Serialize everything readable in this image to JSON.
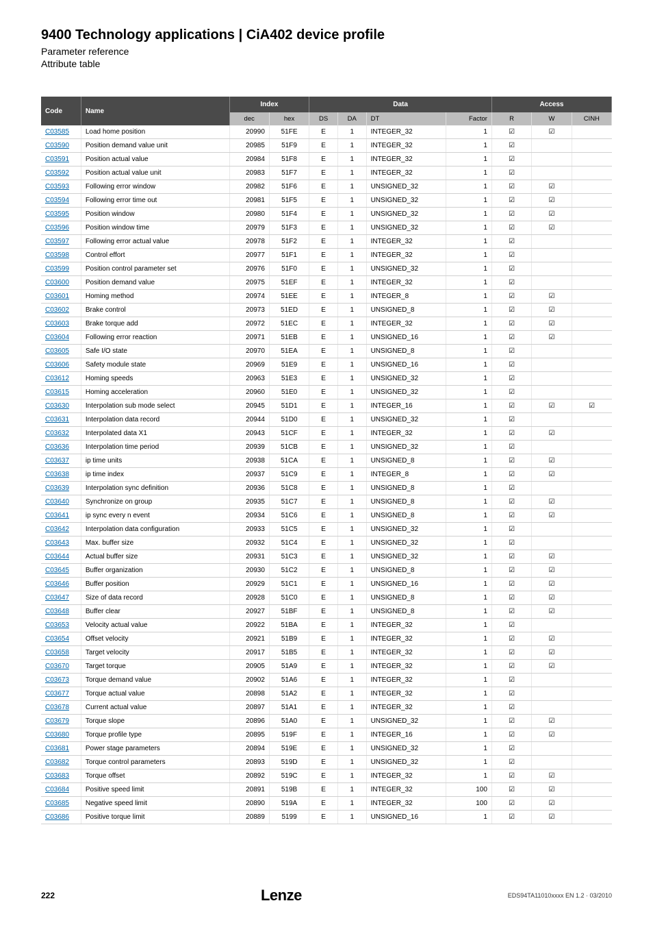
{
  "header": {
    "title": "9400 Technology applications | CiA402 device profile",
    "subtitle": "Parameter reference",
    "attribute_table": "Attribute table"
  },
  "table": {
    "group_headers": {
      "code": "Code",
      "name": "Name",
      "index": "Index",
      "data": "Data",
      "access": "Access"
    },
    "sub_headers": {
      "dec": "dec",
      "hex": "hex",
      "ds": "DS",
      "da": "DA",
      "dt": "DT",
      "factor": "Factor",
      "r": "R",
      "w": "W",
      "cinh": "CINH"
    }
  },
  "checkbox_glyph": "☑",
  "rows": [
    {
      "code": "C03585",
      "name": "Load home position",
      "dec": "20990",
      "hex": "51FE",
      "ds": "E",
      "da": "1",
      "dt": "INTEGER_32",
      "factor": "1",
      "r": true,
      "w": true,
      "cinh": false
    },
    {
      "code": "C03590",
      "name": "Position demand value unit",
      "dec": "20985",
      "hex": "51F9",
      "ds": "E",
      "da": "1",
      "dt": "INTEGER_32",
      "factor": "1",
      "r": true,
      "w": false,
      "cinh": false
    },
    {
      "code": "C03591",
      "name": "Position actual value",
      "dec": "20984",
      "hex": "51F8",
      "ds": "E",
      "da": "1",
      "dt": "INTEGER_32",
      "factor": "1",
      "r": true,
      "w": false,
      "cinh": false
    },
    {
      "code": "C03592",
      "name": "Position actual value unit",
      "dec": "20983",
      "hex": "51F7",
      "ds": "E",
      "da": "1",
      "dt": "INTEGER_32",
      "factor": "1",
      "r": true,
      "w": false,
      "cinh": false
    },
    {
      "code": "C03593",
      "name": "Following error window",
      "dec": "20982",
      "hex": "51F6",
      "ds": "E",
      "da": "1",
      "dt": "UNSIGNED_32",
      "factor": "1",
      "r": true,
      "w": true,
      "cinh": false
    },
    {
      "code": "C03594",
      "name": "Following error time out",
      "dec": "20981",
      "hex": "51F5",
      "ds": "E",
      "da": "1",
      "dt": "UNSIGNED_32",
      "factor": "1",
      "r": true,
      "w": true,
      "cinh": false
    },
    {
      "code": "C03595",
      "name": "Position window",
      "dec": "20980",
      "hex": "51F4",
      "ds": "E",
      "da": "1",
      "dt": "UNSIGNED_32",
      "factor": "1",
      "r": true,
      "w": true,
      "cinh": false
    },
    {
      "code": "C03596",
      "name": "Position window time",
      "dec": "20979",
      "hex": "51F3",
      "ds": "E",
      "da": "1",
      "dt": "UNSIGNED_32",
      "factor": "1",
      "r": true,
      "w": true,
      "cinh": false
    },
    {
      "code": "C03597",
      "name": "Following error actual value",
      "dec": "20978",
      "hex": "51F2",
      "ds": "E",
      "da": "1",
      "dt": "INTEGER_32",
      "factor": "1",
      "r": true,
      "w": false,
      "cinh": false
    },
    {
      "code": "C03598",
      "name": "Control effort",
      "dec": "20977",
      "hex": "51F1",
      "ds": "E",
      "da": "1",
      "dt": "INTEGER_32",
      "factor": "1",
      "r": true,
      "w": false,
      "cinh": false
    },
    {
      "code": "C03599",
      "name": "Position control parameter set",
      "dec": "20976",
      "hex": "51F0",
      "ds": "E",
      "da": "1",
      "dt": "UNSIGNED_32",
      "factor": "1",
      "r": true,
      "w": false,
      "cinh": false
    },
    {
      "code": "C03600",
      "name": "Position demand value",
      "dec": "20975",
      "hex": "51EF",
      "ds": "E",
      "da": "1",
      "dt": "INTEGER_32",
      "factor": "1",
      "r": true,
      "w": false,
      "cinh": false
    },
    {
      "code": "C03601",
      "name": "Homing method",
      "dec": "20974",
      "hex": "51EE",
      "ds": "E",
      "da": "1",
      "dt": "INTEGER_8",
      "factor": "1",
      "r": true,
      "w": true,
      "cinh": false
    },
    {
      "code": "C03602",
      "name": "Brake control",
      "dec": "20973",
      "hex": "51ED",
      "ds": "E",
      "da": "1",
      "dt": "UNSIGNED_8",
      "factor": "1",
      "r": true,
      "w": true,
      "cinh": false
    },
    {
      "code": "C03603",
      "name": "Brake torque add",
      "dec": "20972",
      "hex": "51EC",
      "ds": "E",
      "da": "1",
      "dt": "INTEGER_32",
      "factor": "1",
      "r": true,
      "w": true,
      "cinh": false
    },
    {
      "code": "C03604",
      "name": "Following error reaction",
      "dec": "20971",
      "hex": "51EB",
      "ds": "E",
      "da": "1",
      "dt": "UNSIGNED_16",
      "factor": "1",
      "r": true,
      "w": true,
      "cinh": false
    },
    {
      "code": "C03605",
      "name": "Safe I/O state",
      "dec": "20970",
      "hex": "51EA",
      "ds": "E",
      "da": "1",
      "dt": "UNSIGNED_8",
      "factor": "1",
      "r": true,
      "w": false,
      "cinh": false
    },
    {
      "code": "C03606",
      "name": "Safety module state",
      "dec": "20969",
      "hex": "51E9",
      "ds": "E",
      "da": "1",
      "dt": "UNSIGNED_16",
      "factor": "1",
      "r": true,
      "w": false,
      "cinh": false
    },
    {
      "code": "C03612",
      "name": "Homing speeds",
      "dec": "20963",
      "hex": "51E3",
      "ds": "E",
      "da": "1",
      "dt": "UNSIGNED_32",
      "factor": "1",
      "r": true,
      "w": false,
      "cinh": false
    },
    {
      "code": "C03615",
      "name": "Homing acceleration",
      "dec": "20960",
      "hex": "51E0",
      "ds": "E",
      "da": "1",
      "dt": "UNSIGNED_32",
      "factor": "1",
      "r": true,
      "w": false,
      "cinh": false
    },
    {
      "code": "C03630",
      "name": "Interpolation sub mode select",
      "dec": "20945",
      "hex": "51D1",
      "ds": "E",
      "da": "1",
      "dt": "INTEGER_16",
      "factor": "1",
      "r": true,
      "w": true,
      "cinh": true
    },
    {
      "code": "C03631",
      "name": "Interpolation data record",
      "dec": "20944",
      "hex": "51D0",
      "ds": "E",
      "da": "1",
      "dt": "UNSIGNED_32",
      "factor": "1",
      "r": true,
      "w": false,
      "cinh": false
    },
    {
      "code": "C03632",
      "name": "Interpolated data X1",
      "dec": "20943",
      "hex": "51CF",
      "ds": "E",
      "da": "1",
      "dt": "INTEGER_32",
      "factor": "1",
      "r": true,
      "w": true,
      "cinh": false
    },
    {
      "code": "C03636",
      "name": "Interpolation time period",
      "dec": "20939",
      "hex": "51CB",
      "ds": "E",
      "da": "1",
      "dt": "UNSIGNED_32",
      "factor": "1",
      "r": true,
      "w": false,
      "cinh": false
    },
    {
      "code": "C03637",
      "name": "ip time units",
      "dec": "20938",
      "hex": "51CA",
      "ds": "E",
      "da": "1",
      "dt": "UNSIGNED_8",
      "factor": "1",
      "r": true,
      "w": true,
      "cinh": false
    },
    {
      "code": "C03638",
      "name": "ip time index",
      "dec": "20937",
      "hex": "51C9",
      "ds": "E",
      "da": "1",
      "dt": "INTEGER_8",
      "factor": "1",
      "r": true,
      "w": true,
      "cinh": false
    },
    {
      "code": "C03639",
      "name": "Interpolation sync definition",
      "dec": "20936",
      "hex": "51C8",
      "ds": "E",
      "da": "1",
      "dt": "UNSIGNED_8",
      "factor": "1",
      "r": true,
      "w": false,
      "cinh": false
    },
    {
      "code": "C03640",
      "name": "Synchronize on group",
      "dec": "20935",
      "hex": "51C7",
      "ds": "E",
      "da": "1",
      "dt": "UNSIGNED_8",
      "factor": "1",
      "r": true,
      "w": true,
      "cinh": false
    },
    {
      "code": "C03641",
      "name": "ip sync every n event",
      "dec": "20934",
      "hex": "51C6",
      "ds": "E",
      "da": "1",
      "dt": "UNSIGNED_8",
      "factor": "1",
      "r": true,
      "w": true,
      "cinh": false
    },
    {
      "code": "C03642",
      "name": "Interpolation data configuration",
      "dec": "20933",
      "hex": "51C5",
      "ds": "E",
      "da": "1",
      "dt": "UNSIGNED_32",
      "factor": "1",
      "r": true,
      "w": false,
      "cinh": false
    },
    {
      "code": "C03643",
      "name": "Max. buffer size",
      "dec": "20932",
      "hex": "51C4",
      "ds": "E",
      "da": "1",
      "dt": "UNSIGNED_32",
      "factor": "1",
      "r": true,
      "w": false,
      "cinh": false
    },
    {
      "code": "C03644",
      "name": "Actual buffer size",
      "dec": "20931",
      "hex": "51C3",
      "ds": "E",
      "da": "1",
      "dt": "UNSIGNED_32",
      "factor": "1",
      "r": true,
      "w": true,
      "cinh": false
    },
    {
      "code": "C03645",
      "name": "Buffer organization",
      "dec": "20930",
      "hex": "51C2",
      "ds": "E",
      "da": "1",
      "dt": "UNSIGNED_8",
      "factor": "1",
      "r": true,
      "w": true,
      "cinh": false
    },
    {
      "code": "C03646",
      "name": "Buffer position",
      "dec": "20929",
      "hex": "51C1",
      "ds": "E",
      "da": "1",
      "dt": "UNSIGNED_16",
      "factor": "1",
      "r": true,
      "w": true,
      "cinh": false
    },
    {
      "code": "C03647",
      "name": "Size of data record",
      "dec": "20928",
      "hex": "51C0",
      "ds": "E",
      "da": "1",
      "dt": "UNSIGNED_8",
      "factor": "1",
      "r": true,
      "w": true,
      "cinh": false
    },
    {
      "code": "C03648",
      "name": "Buffer clear",
      "dec": "20927",
      "hex": "51BF",
      "ds": "E",
      "da": "1",
      "dt": "UNSIGNED_8",
      "factor": "1",
      "r": true,
      "w": true,
      "cinh": false
    },
    {
      "code": "C03653",
      "name": "Velocity actual value",
      "dec": "20922",
      "hex": "51BA",
      "ds": "E",
      "da": "1",
      "dt": "INTEGER_32",
      "factor": "1",
      "r": true,
      "w": false,
      "cinh": false
    },
    {
      "code": "C03654",
      "name": "Offset velocity",
      "dec": "20921",
      "hex": "51B9",
      "ds": "E",
      "da": "1",
      "dt": "INTEGER_32",
      "factor": "1",
      "r": true,
      "w": true,
      "cinh": false
    },
    {
      "code": "C03658",
      "name": "Target velocity",
      "dec": "20917",
      "hex": "51B5",
      "ds": "E",
      "da": "1",
      "dt": "INTEGER_32",
      "factor": "1",
      "r": true,
      "w": true,
      "cinh": false
    },
    {
      "code": "C03670",
      "name": "Target torque",
      "dec": "20905",
      "hex": "51A9",
      "ds": "E",
      "da": "1",
      "dt": "INTEGER_32",
      "factor": "1",
      "r": true,
      "w": true,
      "cinh": false
    },
    {
      "code": "C03673",
      "name": "Torque demand value",
      "dec": "20902",
      "hex": "51A6",
      "ds": "E",
      "da": "1",
      "dt": "INTEGER_32",
      "factor": "1",
      "r": true,
      "w": false,
      "cinh": false
    },
    {
      "code": "C03677",
      "name": "Torque actual value",
      "dec": "20898",
      "hex": "51A2",
      "ds": "E",
      "da": "1",
      "dt": "INTEGER_32",
      "factor": "1",
      "r": true,
      "w": false,
      "cinh": false
    },
    {
      "code": "C03678",
      "name": "Current actual value",
      "dec": "20897",
      "hex": "51A1",
      "ds": "E",
      "da": "1",
      "dt": "INTEGER_32",
      "factor": "1",
      "r": true,
      "w": false,
      "cinh": false
    },
    {
      "code": "C03679",
      "name": "Torque slope",
      "dec": "20896",
      "hex": "51A0",
      "ds": "E",
      "da": "1",
      "dt": "UNSIGNED_32",
      "factor": "1",
      "r": true,
      "w": true,
      "cinh": false
    },
    {
      "code": "C03680",
      "name": "Torque profile type",
      "dec": "20895",
      "hex": "519F",
      "ds": "E",
      "da": "1",
      "dt": "INTEGER_16",
      "factor": "1",
      "r": true,
      "w": true,
      "cinh": false
    },
    {
      "code": "C03681",
      "name": "Power stage parameters",
      "dec": "20894",
      "hex": "519E",
      "ds": "E",
      "da": "1",
      "dt": "UNSIGNED_32",
      "factor": "1",
      "r": true,
      "w": false,
      "cinh": false
    },
    {
      "code": "C03682",
      "name": "Torque control parameters",
      "dec": "20893",
      "hex": "519D",
      "ds": "E",
      "da": "1",
      "dt": "UNSIGNED_32",
      "factor": "1",
      "r": true,
      "w": false,
      "cinh": false
    },
    {
      "code": "C03683",
      "name": "Torque offset",
      "dec": "20892",
      "hex": "519C",
      "ds": "E",
      "da": "1",
      "dt": "INTEGER_32",
      "factor": "1",
      "r": true,
      "w": true,
      "cinh": false
    },
    {
      "code": "C03684",
      "name": "Positive speed limit",
      "dec": "20891",
      "hex": "519B",
      "ds": "E",
      "da": "1",
      "dt": "INTEGER_32",
      "factor": "100",
      "r": true,
      "w": true,
      "cinh": false
    },
    {
      "code": "C03685",
      "name": "Negative speed limit",
      "dec": "20890",
      "hex": "519A",
      "ds": "E",
      "da": "1",
      "dt": "INTEGER_32",
      "factor": "100",
      "r": true,
      "w": true,
      "cinh": false
    },
    {
      "code": "C03686",
      "name": "Positive torque limit",
      "dec": "20889",
      "hex": "5199",
      "ds": "E",
      "da": "1",
      "dt": "UNSIGNED_16",
      "factor": "1",
      "r": true,
      "w": true,
      "cinh": false
    }
  ],
  "footer": {
    "page": "222",
    "logo": "Lenze",
    "doc_id": "EDS94TA11010xxxx EN 1.2 · 03/2010"
  }
}
